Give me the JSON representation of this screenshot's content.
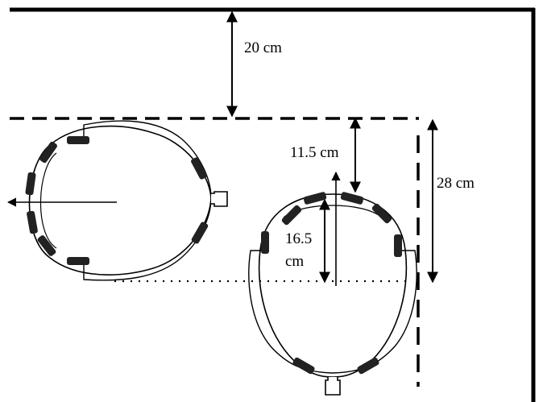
{
  "labels": {
    "wall_gap": "20 cm",
    "gap_to_line": "11.5 cm",
    "depth_value": "16.5",
    "depth_unit": "cm",
    "total_depth": "28 cm"
  },
  "colors": {
    "ink": "#000000",
    "background": "#ffffff"
  }
}
